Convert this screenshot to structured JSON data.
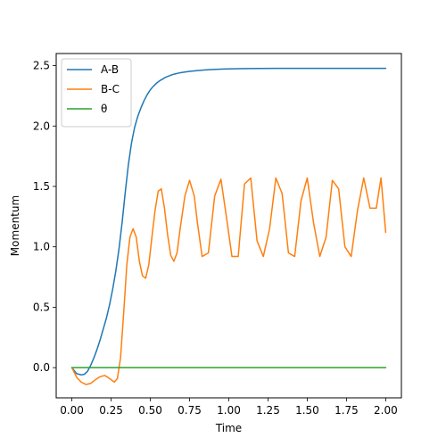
{
  "chart_data": {
    "type": "line",
    "xlabel": "Time",
    "ylabel": "Momentum",
    "xlim": [
      -0.1,
      2.1
    ],
    "ylim": [
      -0.25,
      2.6
    ],
    "xticks": [
      0.0,
      0.25,
      0.5,
      0.75,
      1.0,
      1.25,
      1.5,
      1.75,
      2.0
    ],
    "xtick_labels": [
      "0.00",
      "0.25",
      "0.50",
      "0.75",
      "1.00",
      "1.25",
      "1.50",
      "1.75",
      "2.00"
    ],
    "yticks": [
      0.0,
      0.5,
      1.0,
      1.5,
      2.0,
      2.5
    ],
    "ytick_labels": [
      "0.0",
      "0.5",
      "1.0",
      "1.5",
      "2.0",
      "2.5"
    ],
    "grid": false,
    "legend_position": "top-left",
    "series": [
      {
        "name": "A-B",
        "color": "#1f77b4",
        "x": [
          0.0,
          0.03,
          0.06,
          0.08,
          0.1,
          0.12,
          0.14,
          0.16,
          0.18,
          0.2,
          0.22,
          0.24,
          0.26,
          0.28,
          0.3,
          0.32,
          0.34,
          0.36,
          0.38,
          0.4,
          0.42,
          0.44,
          0.46,
          0.48,
          0.5,
          0.52,
          0.54,
          0.56,
          0.58,
          0.6,
          0.62,
          0.64,
          0.66,
          0.68,
          0.7,
          0.75,
          0.8,
          0.85,
          0.9,
          0.95,
          1.0,
          1.1,
          1.2,
          1.3,
          1.4,
          1.5,
          1.6,
          1.7,
          1.8,
          1.9,
          2.0
        ],
        "y": [
          0.0,
          -0.05,
          -0.06,
          -0.055,
          -0.03,
          0.02,
          0.08,
          0.15,
          0.23,
          0.32,
          0.41,
          0.52,
          0.65,
          0.8,
          0.98,
          1.2,
          1.45,
          1.68,
          1.86,
          1.99,
          2.08,
          2.15,
          2.21,
          2.26,
          2.3,
          2.33,
          2.355,
          2.375,
          2.39,
          2.405,
          2.415,
          2.425,
          2.432,
          2.438,
          2.443,
          2.452,
          2.459,
          2.464,
          2.468,
          2.471,
          2.473,
          2.475,
          2.476,
          2.477,
          2.477,
          2.477,
          2.477,
          2.477,
          2.477,
          2.477,
          2.477
        ]
      },
      {
        "name": "B-C",
        "color": "#ff7f0e",
        "x": [
          0.0,
          0.03,
          0.06,
          0.09,
          0.12,
          0.15,
          0.18,
          0.21,
          0.24,
          0.27,
          0.29,
          0.31,
          0.33,
          0.35,
          0.37,
          0.39,
          0.41,
          0.43,
          0.45,
          0.47,
          0.49,
          0.51,
          0.53,
          0.55,
          0.57,
          0.59,
          0.61,
          0.63,
          0.65,
          0.67,
          0.69,
          0.72,
          0.75,
          0.78,
          0.8,
          0.83,
          0.87,
          0.91,
          0.95,
          0.99,
          1.02,
          1.06,
          1.1,
          1.14,
          1.18,
          1.22,
          1.26,
          1.3,
          1.34,
          1.38,
          1.42,
          1.46,
          1.5,
          1.54,
          1.58,
          1.62,
          1.66,
          1.7,
          1.74,
          1.78,
          1.82,
          1.86,
          1.9,
          1.94,
          1.97,
          2.0
        ],
        "y": [
          0.0,
          -0.08,
          -0.12,
          -0.14,
          -0.13,
          -0.1,
          -0.075,
          -0.065,
          -0.09,
          -0.12,
          -0.09,
          0.08,
          0.45,
          0.85,
          1.08,
          1.15,
          1.08,
          0.88,
          0.76,
          0.74,
          0.85,
          1.08,
          1.3,
          1.46,
          1.48,
          1.32,
          1.1,
          0.93,
          0.88,
          0.95,
          1.15,
          1.42,
          1.55,
          1.42,
          1.2,
          0.92,
          0.95,
          1.42,
          1.56,
          1.2,
          0.92,
          0.92,
          1.52,
          1.57,
          1.05,
          0.92,
          1.15,
          1.57,
          1.44,
          0.95,
          0.92,
          1.38,
          1.57,
          1.2,
          0.92,
          1.08,
          1.55,
          1.48,
          1.0,
          0.92,
          1.3,
          1.57,
          1.32,
          1.32,
          1.57,
          1.12
        ]
      },
      {
        "name": "θ",
        "color": "#2ca02c",
        "x": [
          0.0,
          2.0
        ],
        "y": [
          0.0,
          0.0
        ]
      }
    ]
  }
}
